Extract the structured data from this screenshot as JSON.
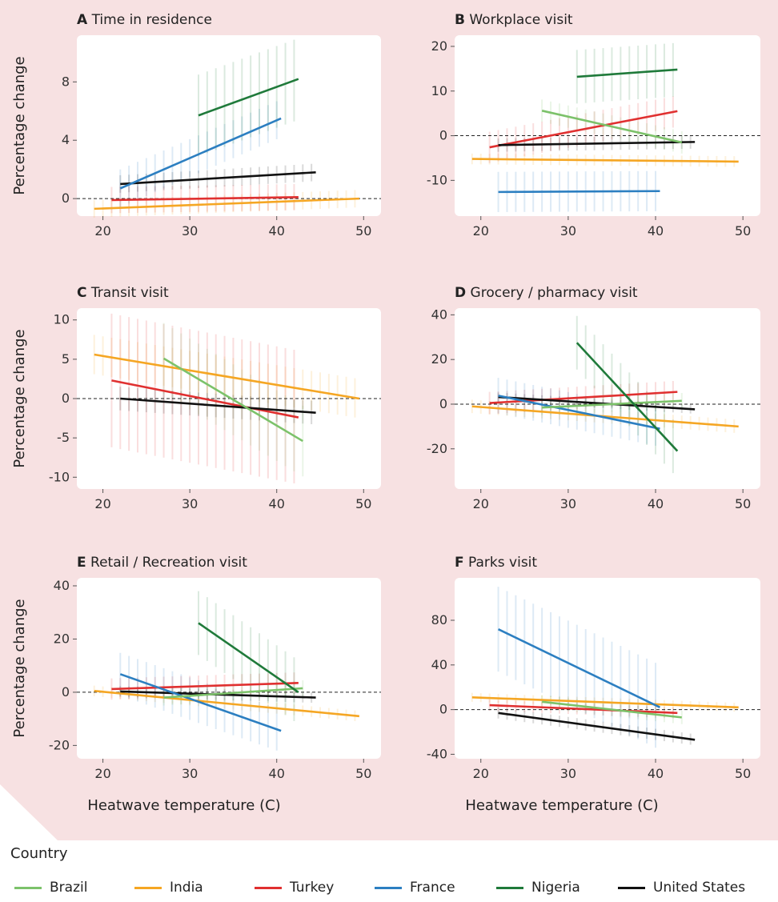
{
  "country_colors": {
    "Brazil": "#7cc26a",
    "India": "#f5a623",
    "Turkey": "#e03030",
    "France": "#2c7fc1",
    "Nigeria": "#1f7a3a",
    "United States": "#111111"
  },
  "chart_data": [
    {
      "type": "line",
      "letter": "A",
      "title": "Time in residence",
      "ylabel": "Percentage change",
      "xlabel": "",
      "xlim": [
        17,
        52
      ],
      "ylim": [
        -1.2,
        11.2
      ],
      "xticks": [
        20,
        30,
        40,
        50
      ],
      "yticks": [
        0,
        4,
        8
      ],
      "ytick_labels": [
        "0",
        "4",
        "8"
      ],
      "series": [
        {
          "name": "India",
          "x": [
            19,
            49.5
          ],
          "y": [
            -0.7,
            0.0
          ],
          "ci": 0.6
        },
        {
          "name": "Turkey",
          "x": [
            21,
            42.5
          ],
          "y": [
            -0.1,
            0.1
          ],
          "ci": 0.9
        },
        {
          "name": "United States",
          "x": [
            22,
            44.5
          ],
          "y": [
            1.0,
            1.8
          ],
          "ci": 0.6
        },
        {
          "name": "France",
          "x": [
            22,
            40.5
          ],
          "y": [
            0.7,
            5.5
          ],
          "ci": 1.3
        },
        {
          "name": "Nigeria",
          "x": [
            31,
            42.5
          ],
          "y": [
            5.7,
            8.2
          ],
          "ci": 2.8
        }
      ]
    },
    {
      "type": "line",
      "letter": "B",
      "title": "Workplace visit",
      "ylabel": "",
      "xlabel": "",
      "xlim": [
        17,
        52
      ],
      "ylim": [
        -18,
        22.5
      ],
      "xticks": [
        20,
        30,
        40,
        50
      ],
      "yticks": [
        20,
        10,
        0,
        -10
      ],
      "ytick_labels": [
        "20",
        "10",
        "0",
        "-10"
      ],
      "series": [
        {
          "name": "India",
          "x": [
            19,
            49.5
          ],
          "y": [
            -5.2,
            -5.8
          ],
          "ci": 1.2
        },
        {
          "name": "France",
          "x": [
            22,
            40.5
          ],
          "y": [
            -12.6,
            -12.4
          ],
          "ci": 4.5
        },
        {
          "name": "Turkey",
          "x": [
            21,
            42.5
          ],
          "y": [
            -2.6,
            5.5
          ],
          "ci": 3.5
        },
        {
          "name": "United States",
          "x": [
            22,
            44.5
          ],
          "y": [
            -2.1,
            -1.4
          ],
          "ci": 1.5
        },
        {
          "name": "Brazil",
          "x": [
            27,
            43
          ],
          "y": [
            5.6,
            -1.5
          ],
          "ci": 2.5
        },
        {
          "name": "Nigeria",
          "x": [
            31,
            42.5
          ],
          "y": [
            13.2,
            14.8
          ],
          "ci": 6.0
        }
      ]
    },
    {
      "type": "line",
      "letter": "C",
      "title": "Transit visit",
      "ylabel": "Percentage change",
      "xlabel": "",
      "xlim": [
        17,
        52
      ],
      "ylim": [
        -11.5,
        11.5
      ],
      "xticks": [
        20,
        30,
        40,
        50
      ],
      "yticks": [
        10,
        5,
        0,
        -5,
        -10
      ],
      "ytick_labels": [
        "10",
        "5",
        "0",
        "-5",
        "-10"
      ],
      "series": [
        {
          "name": "India",
          "x": [
            19,
            49.5
          ],
          "y": [
            5.6,
            0.0
          ],
          "ci": 2.5
        },
        {
          "name": "Turkey",
          "x": [
            21,
            42.5
          ],
          "y": [
            2.3,
            -2.4
          ],
          "ci": 8.5
        },
        {
          "name": "United States",
          "x": [
            22,
            44.5
          ],
          "y": [
            0.0,
            -1.8
          ],
          "ci": 1.5
        },
        {
          "name": "Brazil",
          "x": [
            27,
            43
          ],
          "y": [
            5.1,
            -5.4
          ],
          "ci": 4.5
        }
      ]
    },
    {
      "type": "line",
      "letter": "D",
      "title": "Grocery / pharmacy visit",
      "ylabel": "",
      "xlabel": "",
      "xlim": [
        17,
        52
      ],
      "ylim": [
        -38,
        43
      ],
      "xticks": [
        20,
        30,
        40,
        50
      ],
      "yticks": [
        40,
        20,
        0,
        -20
      ],
      "ytick_labels": [
        "40",
        "20",
        "0",
        "-20"
      ],
      "series": [
        {
          "name": "India",
          "x": [
            19,
            49.5
          ],
          "y": [
            -1.0,
            -10.0
          ],
          "ci": 3.0
        },
        {
          "name": "Turkey",
          "x": [
            21,
            42.5
          ],
          "y": [
            0.5,
            5.5
          ],
          "ci": 5.0
        },
        {
          "name": "United States",
          "x": [
            22,
            44.5
          ],
          "y": [
            3.2,
            -2.3
          ],
          "ci": 2.0
        },
        {
          "name": "France",
          "x": [
            22,
            40.5
          ],
          "y": [
            3.8,
            -11.0
          ],
          "ci": 8.0
        },
        {
          "name": "Brazil",
          "x": [
            27,
            43
          ],
          "y": [
            -1.5,
            1.5
          ],
          "ci": 3.5
        },
        {
          "name": "Nigeria",
          "x": [
            31,
            42.5
          ],
          "y": [
            27.5,
            -21.0
          ],
          "ci": 12.0
        }
      ]
    },
    {
      "type": "line",
      "letter": "E",
      "title": "Retail / Recreation visit",
      "ylabel": "Percentage change",
      "xlabel": "Heatwave temperature (C)",
      "xlim": [
        17,
        52
      ],
      "ylim": [
        -25,
        43
      ],
      "xticks": [
        20,
        30,
        40,
        50
      ],
      "yticks": [
        40,
        20,
        0,
        -20
      ],
      "ytick_labels": [
        "40",
        "20",
        "0",
        "-20"
      ],
      "series": [
        {
          "name": "India",
          "x": [
            19,
            49.5
          ],
          "y": [
            0.5,
            -9.0
          ],
          "ci": 2.0
        },
        {
          "name": "Turkey",
          "x": [
            21,
            42.5
          ],
          "y": [
            1.2,
            3.5
          ],
          "ci": 4.0
        },
        {
          "name": "United States",
          "x": [
            22,
            44.5
          ],
          "y": [
            0.3,
            -2.0
          ],
          "ci": 2.0
        },
        {
          "name": "France",
          "x": [
            22,
            40.5
          ],
          "y": [
            6.8,
            -14.5
          ],
          "ci": 8.0
        },
        {
          "name": "Brazil",
          "x": [
            27,
            43
          ],
          "y": [
            -2.0,
            1.5
          ],
          "ci": 3.0
        },
        {
          "name": "Nigeria",
          "x": [
            31,
            42.5
          ],
          "y": [
            26.0,
            0.0
          ],
          "ci": 12.0
        }
      ]
    },
    {
      "type": "line",
      "letter": "F",
      "title": "Parks visit",
      "ylabel": "",
      "xlabel": "Heatwave temperature (C)",
      "xlim": [
        17,
        52
      ],
      "ylim": [
        -44,
        118
      ],
      "xticks": [
        20,
        30,
        40,
        50
      ],
      "yticks": [
        80,
        40,
        0,
        -40
      ],
      "ytick_labels": [
        "80",
        "40",
        "0",
        "-40"
      ],
      "series": [
        {
          "name": "India",
          "x": [
            19,
            49.5
          ],
          "y": [
            11.0,
            2.0
          ],
          "ci": 4.0
        },
        {
          "name": "Turkey",
          "x": [
            21,
            42.5
          ],
          "y": [
            4.0,
            -3.0
          ],
          "ci": 5.0
        },
        {
          "name": "Brazil",
          "x": [
            27,
            43
          ],
          "y": [
            7.0,
            -7.0
          ],
          "ci": 6.0
        },
        {
          "name": "United States",
          "x": [
            22,
            44.5
          ],
          "y": [
            -3.0,
            -27.0
          ],
          "ci": 5.0
        },
        {
          "name": "France",
          "x": [
            22,
            40.5
          ],
          "y": [
            72.0,
            2.0
          ],
          "ci": 38.0
        }
      ]
    }
  ],
  "legend": {
    "title": "Country",
    "items": [
      "Brazil",
      "India",
      "Turkey",
      "France",
      "Nigeria",
      "United States"
    ]
  }
}
